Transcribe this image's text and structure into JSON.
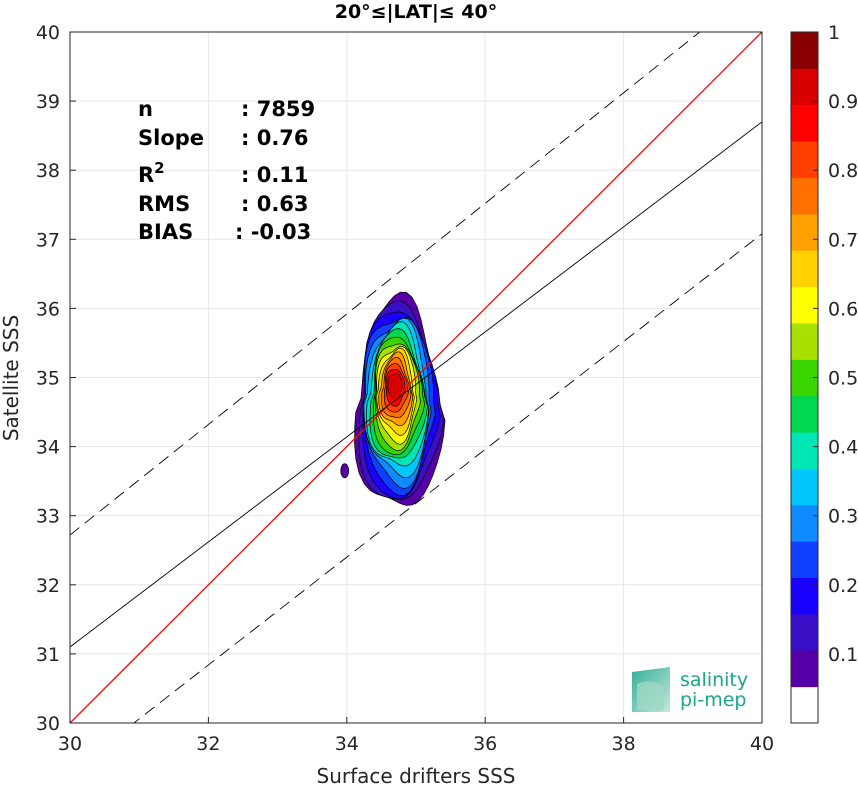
{
  "chart_data": {
    "type": "contour",
    "title": "20°≤|LAT|≤ 40°",
    "xlabel": "Surface drifters SSS",
    "ylabel": "Satellite SSS",
    "xlim": [
      30,
      40
    ],
    "ylim": [
      30,
      40
    ],
    "xticks": [
      "30",
      "32",
      "34",
      "36",
      "38",
      "40"
    ],
    "yticks": [
      "30",
      "31",
      "32",
      "33",
      "34",
      "35",
      "36",
      "37",
      "38",
      "39",
      "40"
    ],
    "grid": true,
    "stats": [
      {
        "label": "n",
        "value": ": 7859"
      },
      {
        "label": "Slope",
        "value": ": 0.76"
      },
      {
        "label": "R",
        "sup": "2",
        "value": ": 0.11"
      },
      {
        "label": "RMS",
        "value": ": 0.63"
      },
      {
        "label": "BIAS",
        "value": ": -0.03"
      }
    ],
    "lines": {
      "identity": {
        "slope": 1,
        "intercept": 0,
        "color": "#ff0000"
      },
      "fit": {
        "points": [
          [
            30,
            31.1
          ],
          [
            40,
            38.7
          ]
        ],
        "color": "#000000"
      },
      "upper_dashed": {
        "points": [
          [
            30,
            32.72
          ],
          [
            40,
            40.72
          ]
        ]
      },
      "lower_dashed": {
        "points": [
          [
            30,
            29.28
          ],
          [
            40,
            37.08
          ]
        ]
      }
    },
    "density_blob": {
      "x": 34.75,
      "y": 34.6,
      "peak_y": 34.9
    },
    "colorbar": {
      "ticks": [
        "0.1",
        "0.2",
        "0.3",
        "0.4",
        "0.5",
        "0.6",
        "0.7",
        "0.8",
        "0.9",
        "1"
      ],
      "min": 0,
      "max": 1,
      "colors": [
        "#ffffff",
        "#5800a8",
        "#3a10c6",
        "#1a00ff",
        "#1040ff",
        "#0f8bff",
        "#00c8ff",
        "#00e6b4",
        "#00d850",
        "#3ad400",
        "#a8e000",
        "#ffff00",
        "#ffd200",
        "#ffa000",
        "#ff7000",
        "#ff4000",
        "#ff0000",
        "#d80000",
        "#8a0000"
      ]
    }
  },
  "logo": {
    "line1": "salinity",
    "line2": "pi-mep"
  }
}
